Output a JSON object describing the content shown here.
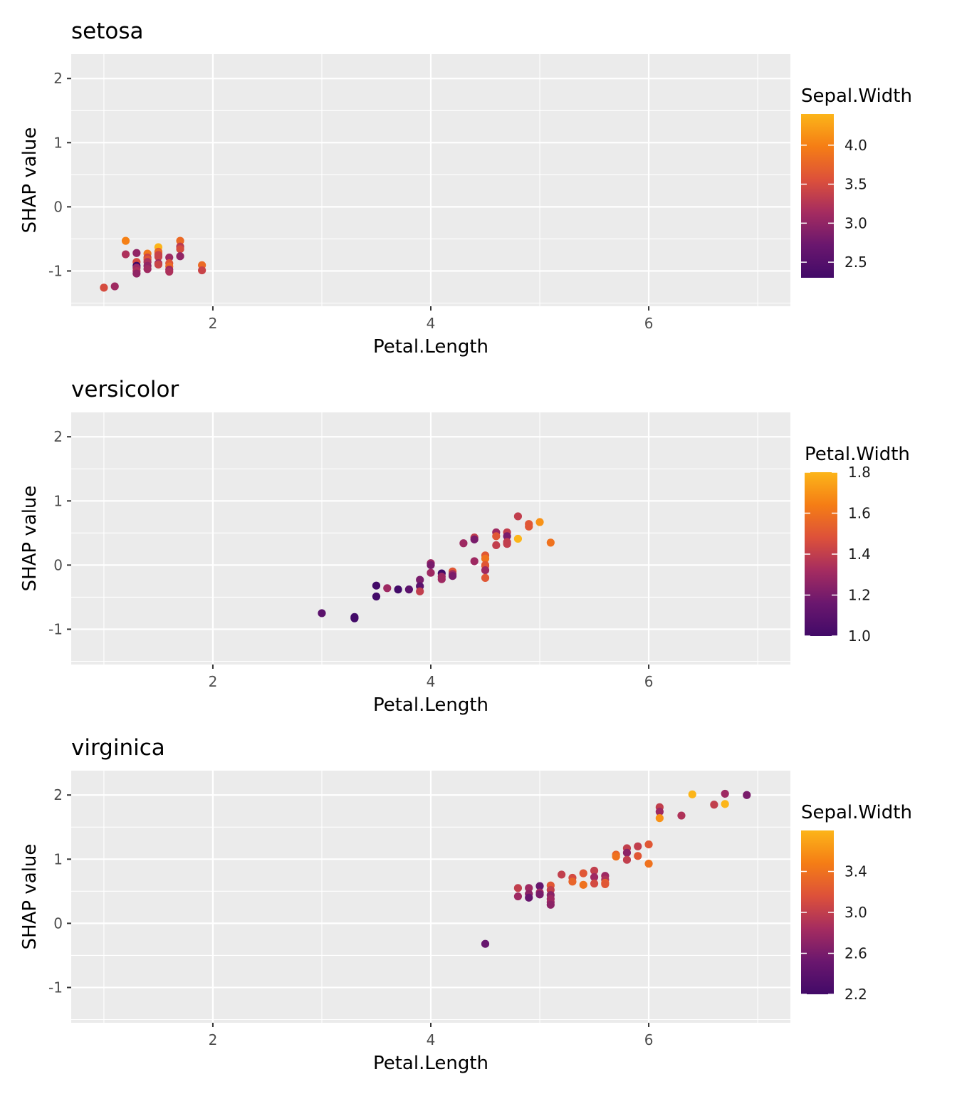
{
  "chart_data": [
    {
      "type": "scatter",
      "title": "setosa",
      "xlabel": "Petal.Length",
      "ylabel": "SHAP value",
      "xlim": [
        0.7,
        7.3
      ],
      "ylim": [
        -1.55,
        2.38
      ],
      "x_ticks": [
        2,
        4,
        6
      ],
      "y_ticks": [
        -1,
        0,
        1,
        2
      ],
      "x_tick_labels": [
        "2",
        "4",
        "6"
      ],
      "y_tick_labels": [
        "-1",
        "0",
        "1",
        "2"
      ],
      "grid": true,
      "legend": {
        "title": "Sepal.Width",
        "placement": "right",
        "type": "colorbar",
        "range": [
          2.3,
          4.4
        ],
        "ticks": [
          4.0,
          3.5,
          3.0,
          2.5
        ],
        "tick_labels": [
          "4.0",
          "3.5",
          "3.0",
          "2.5"
        ]
      },
      "x": [
        1.0,
        1.1,
        1.2,
        1.2,
        1.3,
        1.3,
        1.3,
        1.3,
        1.3,
        1.3,
        1.4,
        1.4,
        1.4,
        1.4,
        1.4,
        1.4,
        1.5,
        1.5,
        1.5,
        1.5,
        1.5,
        1.5,
        1.5,
        1.6,
        1.6,
        1.6,
        1.6,
        1.6,
        1.7,
        1.7,
        1.7,
        1.7,
        1.9,
        1.9
      ],
      "y": [
        -1.26,
        -1.24,
        -0.74,
        -0.53,
        -0.72,
        -0.86,
        -0.92,
        -0.95,
        -1.0,
        -1.04,
        -0.73,
        -0.79,
        -0.82,
        -0.86,
        -0.92,
        -0.97,
        -0.63,
        -0.7,
        -0.72,
        -0.75,
        -0.78,
        -0.88,
        -0.9,
        -0.79,
        -0.88,
        -0.93,
        -0.98,
        -1.01,
        -0.53,
        -0.62,
        -0.66,
        -0.77,
        -0.91,
        -0.99
      ],
      "color": [
        3.5,
        3.1,
        3.2,
        4.0,
        3.0,
        3.5,
        2.3,
        3.1,
        3.2,
        3.0,
        3.9,
        3.4,
        3.6,
        3.2,
        3.0,
        3.1,
        4.4,
        3.7,
        3.8,
        3.4,
        3.4,
        3.1,
        3.4,
        3.1,
        3.6,
        3.8,
        3.1,
        3.2,
        3.8,
        3.3,
        3.5,
        3.0,
        3.8,
        3.4
      ]
    },
    {
      "type": "scatter",
      "title": "versicolor",
      "xlabel": "Petal.Length",
      "ylabel": "SHAP value",
      "xlim": [
        0.7,
        7.3
      ],
      "ylim": [
        -1.55,
        2.38
      ],
      "x_ticks": [
        2,
        4,
        6
      ],
      "y_ticks": [
        -1,
        0,
        1,
        2
      ],
      "x_tick_labels": [
        "2",
        "4",
        "6"
      ],
      "y_tick_labels": [
        "-1",
        "0",
        "1",
        "2"
      ],
      "grid": true,
      "legend": {
        "title": "Petal.Width",
        "placement": "right",
        "type": "colorbar",
        "range": [
          1.0,
          1.8
        ],
        "ticks": [
          1.8,
          1.6,
          1.4,
          1.2,
          1.0
        ],
        "tick_labels": [
          "1.8",
          "1.6",
          "1.4",
          "1.2",
          "1.0"
        ]
      },
      "x": [
        3.0,
        3.3,
        3.3,
        3.5,
        3.5,
        3.6,
        3.7,
        3.8,
        3.9,
        3.9,
        3.9,
        4.0,
        4.0,
        4.0,
        4.1,
        4.1,
        4.1,
        4.2,
        4.2,
        4.2,
        4.3,
        4.4,
        4.4,
        4.4,
        4.5,
        4.5,
        4.5,
        4.5,
        4.5,
        4.5,
        4.6,
        4.6,
        4.6,
        4.7,
        4.7,
        4.7,
        4.7,
        4.8,
        4.8,
        4.9,
        4.9,
        5.0,
        5.1
      ],
      "y": [
        -0.75,
        -0.81,
        -0.83,
        -0.32,
        -0.49,
        -0.36,
        -0.38,
        -0.38,
        -0.23,
        -0.33,
        -0.41,
        0.03,
        0.0,
        -0.12,
        -0.13,
        -0.18,
        -0.22,
        -0.1,
        -0.14,
        -0.17,
        0.34,
        0.43,
        0.4,
        0.06,
        0.15,
        0.1,
        0.0,
        -0.01,
        -0.08,
        -0.2,
        0.51,
        0.45,
        0.31,
        0.51,
        0.45,
        0.36,
        0.33,
        0.76,
        0.41,
        0.64,
        0.6,
        0.67,
        0.35
      ],
      "color": [
        1.1,
        1.0,
        1.0,
        1.0,
        1.0,
        1.3,
        1.0,
        1.1,
        1.2,
        1.1,
        1.4,
        1.3,
        1.2,
        1.3,
        1.0,
        1.3,
        1.3,
        1.5,
        1.3,
        1.2,
        1.3,
        1.4,
        1.2,
        1.3,
        1.5,
        1.6,
        1.5,
        1.5,
        1.3,
        1.5,
        1.3,
        1.5,
        1.4,
        1.4,
        1.2,
        1.4,
        1.4,
        1.4,
        1.8,
        1.5,
        1.5,
        1.7,
        1.6
      ]
    },
    {
      "type": "scatter",
      "title": "virginica",
      "xlabel": "Petal.Length",
      "ylabel": "SHAP value",
      "xlim": [
        0.7,
        7.3
      ],
      "ylim": [
        -1.55,
        2.38
      ],
      "x_ticks": [
        2,
        4,
        6
      ],
      "y_ticks": [
        -1,
        0,
        1,
        2
      ],
      "x_tick_labels": [
        "2",
        "4",
        "6"
      ],
      "y_tick_labels": [
        "-1",
        "0",
        "1",
        "2"
      ],
      "grid": true,
      "legend": {
        "title": "Sepal.Width",
        "placement": "right",
        "type": "colorbar",
        "range": [
          2.2,
          3.8
        ],
        "ticks": [
          3.4,
          3.0,
          2.6,
          2.2
        ],
        "tick_labels": [
          "3.4",
          "3.0",
          "2.6",
          "2.2"
        ]
      },
      "x": [
        4.5,
        4.8,
        4.8,
        4.9,
        4.9,
        4.9,
        5.0,
        5.0,
        5.0,
        5.1,
        5.1,
        5.1,
        5.1,
        5.1,
        5.1,
        5.2,
        5.3,
        5.3,
        5.4,
        5.4,
        5.5,
        5.5,
        5.5,
        5.6,
        5.6,
        5.6,
        5.6,
        5.7,
        5.7,
        5.8,
        5.8,
        5.8,
        5.9,
        5.9,
        6.0,
        6.0,
        6.1,
        6.1,
        6.1,
        6.3,
        6.4,
        6.6,
        6.7,
        6.7,
        6.9
      ],
      "y": [
        -0.32,
        0.55,
        0.42,
        0.55,
        0.46,
        0.4,
        0.58,
        0.48,
        0.45,
        0.59,
        0.52,
        0.44,
        0.38,
        0.33,
        0.29,
        0.76,
        0.71,
        0.65,
        0.78,
        0.6,
        0.82,
        0.72,
        0.62,
        0.74,
        0.68,
        0.63,
        0.61,
        1.07,
        1.04,
        1.17,
        1.1,
        0.99,
        1.2,
        1.05,
        1.23,
        0.93,
        1.81,
        1.74,
        1.64,
        1.68,
        2.01,
        1.85,
        2.02,
        1.86,
        2.0
      ],
      "color": [
        2.5,
        3.0,
        2.8,
        2.8,
        2.7,
        2.5,
        2.5,
        2.8,
        2.6,
        3.2,
        3.0,
        2.7,
        2.8,
        2.8,
        2.7,
        3.0,
        3.1,
        3.3,
        3.2,
        3.4,
        3.0,
        2.8,
        3.1,
        2.8,
        2.9,
        3.3,
        3.2,
        3.3,
        3.4,
        3.0,
        2.7,
        3.0,
        3.0,
        3.2,
        3.2,
        3.4,
        3.0,
        2.8,
        3.6,
        2.9,
        3.8,
        3.0,
        2.8,
        3.8,
        2.6
      ]
    }
  ]
}
